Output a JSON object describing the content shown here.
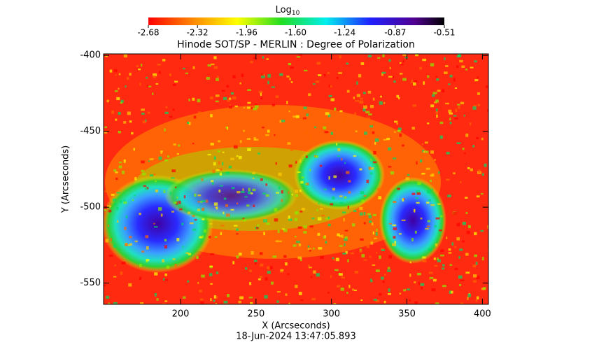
{
  "chart_data": {
    "type": "image",
    "title": "Hinode SOT/SP - MERLIN : Degree of Polarization",
    "x_label": "X (Arcseconds)",
    "y_label": "Y (Arcseconds)",
    "xlim": [
      149,
      404
    ],
    "xticks": [
      200,
      250,
      300,
      350,
      400
    ],
    "ylim": [
      -399,
      -564
    ],
    "yticks": [
      -400,
      -450,
      -500,
      -550
    ],
    "colorbar_label": "Log",
    "colorbar_label_sub": "10",
    "colorbar_lim": [
      -2.68,
      -0.51
    ],
    "colorbar_ticks": [
      -2.68,
      -2.32,
      -1.96,
      {
        "value": -1.6,
        "label": "-1.60"
      },
      -1.24,
      -0.87,
      -0.51
    ],
    "timestamp": "18-Jun-2024 13:47:05.893"
  }
}
